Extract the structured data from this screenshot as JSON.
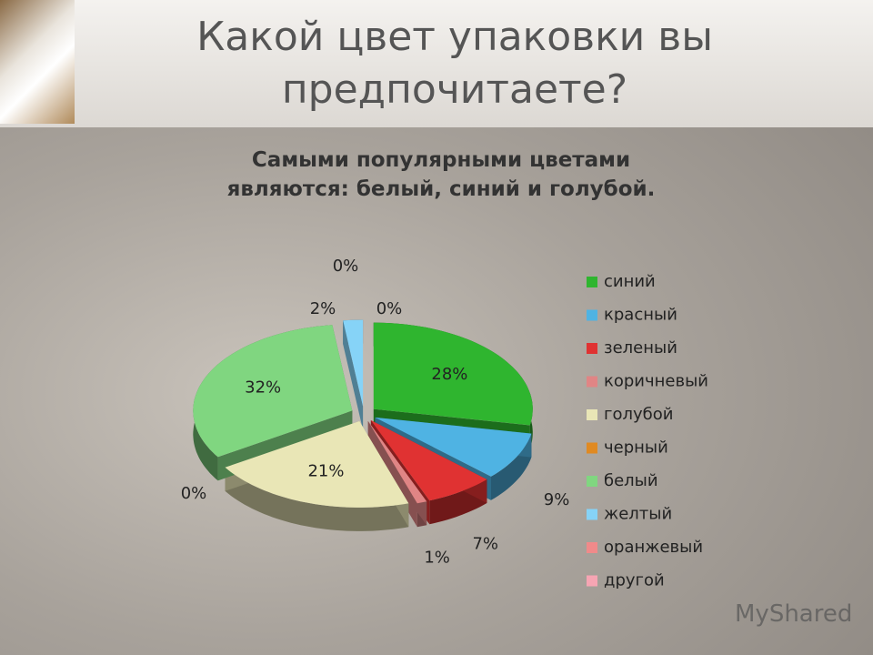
{
  "slide_title": "Какой цвет упаковки вы предпочитаете?",
  "watermark": "MyShared",
  "chart_data": {
    "type": "pie",
    "title": "Самыми популярными цветами являются: белый, синий и голубой.",
    "categories": [
      "синий",
      "красный",
      "зеленый",
      "коричневый",
      "голубой",
      "черный",
      "белый",
      "желтый",
      "оранжевый",
      "другой"
    ],
    "values": [
      28,
      9,
      7,
      1,
      21,
      0,
      32,
      2,
      0,
      0
    ],
    "value_labels": [
      "28%",
      "9%",
      "7%",
      "1%",
      "21%",
      "0%",
      "32%",
      "2%",
      "0%",
      "0%"
    ],
    "colors": [
      "#2fb52f",
      "#4fb3e3",
      "#e03232",
      "#e08585",
      "#e9e6b6",
      "#e08a22",
      "#80d680",
      "#86d3f7",
      "#f08a8a",
      "#f6a5b3"
    ],
    "legend": "right"
  }
}
